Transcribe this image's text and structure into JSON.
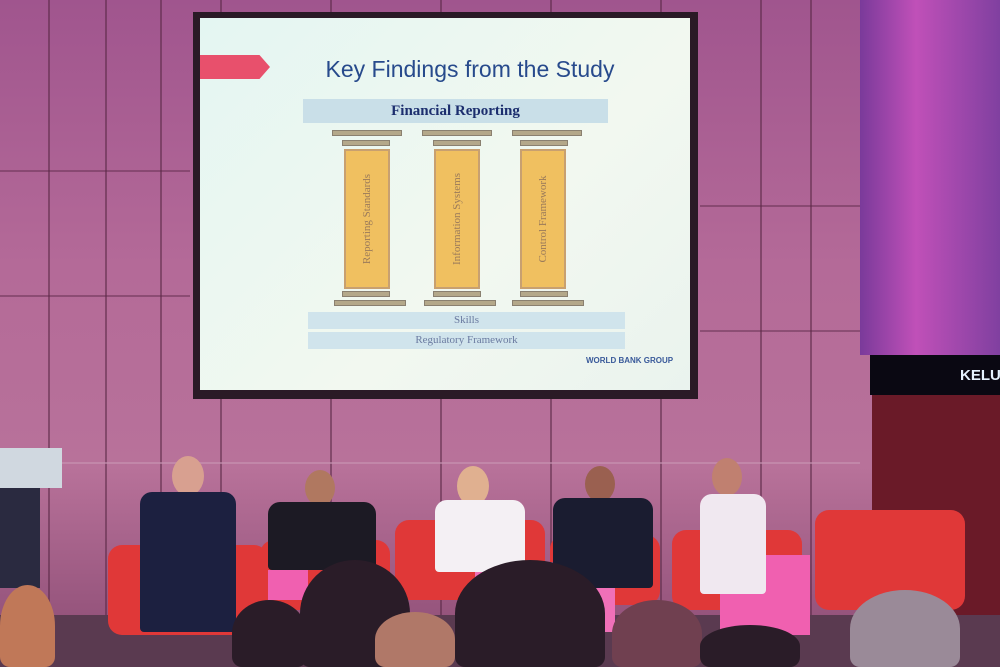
{
  "slide": {
    "title": "Key Findings from the Study",
    "banner": "Financial Reporting",
    "pillars": [
      "Reporting Standards",
      "Information Systems",
      "Control Framework"
    ],
    "foundation": [
      "Skills",
      "Regulatory Framework"
    ],
    "logo": "WORLD BANK GROUP"
  },
  "sign": {
    "text": "KELUA"
  },
  "colors": {
    "sofa": "#e03838",
    "wall": "#b46a98",
    "slide_title": "#274a8c",
    "pillar": "#f0c060"
  }
}
